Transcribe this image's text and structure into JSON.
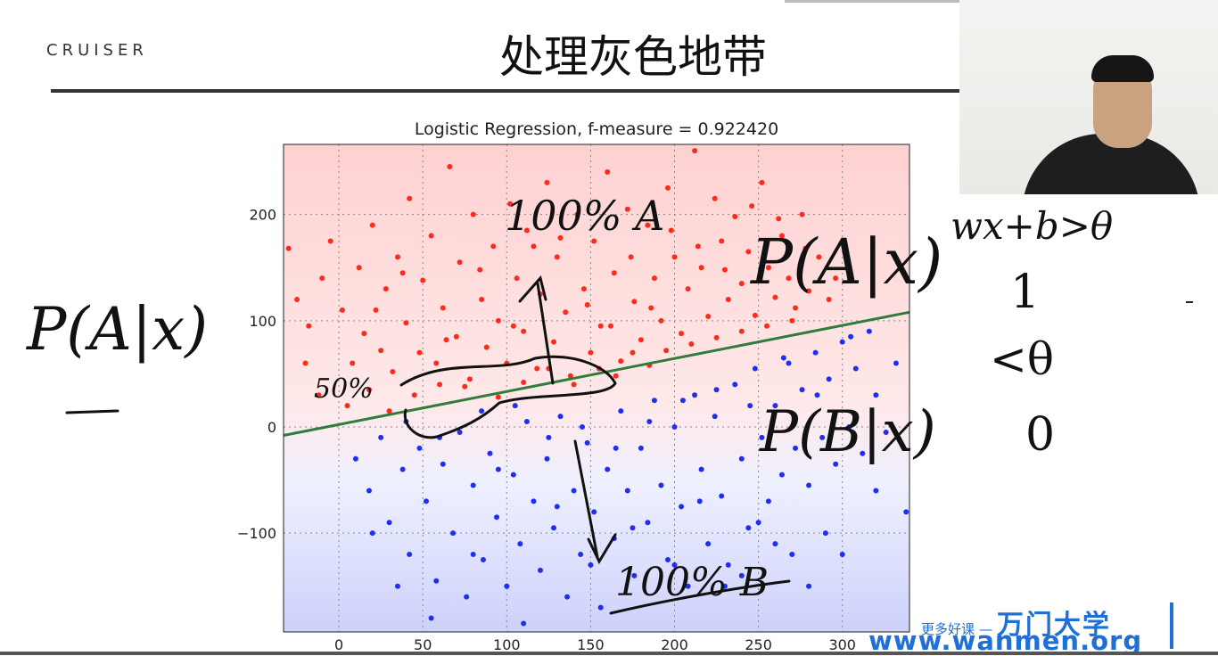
{
  "slide": {
    "logo": "CRUISER",
    "title": "处理灰色地带"
  },
  "colors": {
    "class_a": "#ff2a1a",
    "class_b": "#1f2ef0",
    "region_a": "#ffd2d2",
    "region_b": "#cfd2fb",
    "boundary": "#2f7d3a",
    "ink": "#111111",
    "brand": "#1e6fd6"
  },
  "chart_data": {
    "type": "scatter",
    "title": "Logistic Regression, f-measure = 0.922420",
    "xlim": [
      -33,
      340
    ],
    "ylim": [
      -193,
      266
    ],
    "xticks": [
      0,
      50,
      100,
      150,
      200,
      250,
      300
    ],
    "yticks": [
      -100,
      0,
      100,
      200
    ],
    "grid": true,
    "decision_boundary": {
      "x": [
        -33,
        340
      ],
      "y": [
        -8,
        108
      ]
    },
    "series": [
      {
        "points": [
          [
            -30,
            168
          ],
          [
            -25,
            120
          ],
          [
            -18,
            95
          ],
          [
            -10,
            140
          ],
          [
            -5,
            175
          ],
          [
            2,
            110
          ],
          [
            8,
            60
          ],
          [
            12,
            150
          ],
          [
            15,
            88
          ],
          [
            20,
            190
          ],
          [
            25,
            72
          ],
          [
            28,
            130
          ],
          [
            32,
            52
          ],
          [
            35,
            160
          ],
          [
            40,
            98
          ],
          [
            42,
            215
          ],
          [
            48,
            70
          ],
          [
            50,
            138
          ],
          [
            55,
            180
          ],
          [
            58,
            60
          ],
          [
            62,
            112
          ],
          [
            66,
            245
          ],
          [
            70,
            85
          ],
          [
            72,
            155
          ],
          [
            78,
            45
          ],
          [
            80,
            200
          ],
          [
            85,
            120
          ],
          [
            88,
            75
          ],
          [
            92,
            170
          ],
          [
            95,
            100
          ],
          [
            100,
            60
          ],
          [
            102,
            210
          ],
          [
            106,
            140
          ],
          [
            110,
            90
          ],
          [
            112,
            185
          ],
          [
            118,
            55
          ],
          [
            120,
            125
          ],
          [
            124,
            230
          ],
          [
            128,
            80
          ],
          [
            130,
            160
          ],
          [
            135,
            108
          ],
          [
            138,
            48
          ],
          [
            142,
            200
          ],
          [
            146,
            130
          ],
          [
            150,
            70
          ],
          [
            152,
            175
          ],
          [
            156,
            95
          ],
          [
            160,
            240
          ],
          [
            164,
            145
          ],
          [
            168,
            62
          ],
          [
            172,
            205
          ],
          [
            176,
            118
          ],
          [
            180,
            82
          ],
          [
            184,
            190
          ],
          [
            188,
            140
          ],
          [
            192,
            100
          ],
          [
            196,
            225
          ],
          [
            200,
            160
          ],
          [
            204,
            88
          ],
          [
            208,
            130
          ],
          [
            212,
            260
          ],
          [
            216,
            150
          ],
          [
            220,
            104
          ],
          [
            224,
            215
          ],
          [
            228,
            175
          ],
          [
            232,
            120
          ],
          [
            236,
            198
          ],
          [
            240,
            135
          ],
          [
            244,
            165
          ],
          [
            248,
            105
          ],
          [
            252,
            230
          ],
          [
            256,
            150
          ],
          [
            260,
            122
          ],
          [
            264,
            180
          ],
          [
            268,
            140
          ],
          [
            272,
            112
          ],
          [
            276,
            200
          ],
          [
            280,
            128
          ],
          [
            286,
            160
          ],
          [
            292,
            120
          ],
          [
            5,
            20
          ],
          [
            18,
            35
          ],
          [
            30,
            15
          ],
          [
            45,
            30
          ],
          [
            60,
            40
          ],
          [
            75,
            38
          ],
          [
            95,
            28
          ],
          [
            110,
            42
          ],
          [
            125,
            55
          ],
          [
            140,
            40
          ],
          [
            155,
            55
          ],
          [
            165,
            48
          ],
          [
            175,
            70
          ],
          [
            185,
            58
          ],
          [
            195,
            72
          ],
          [
            210,
            78
          ],
          [
            225,
            84
          ],
          [
            240,
            90
          ],
          [
            255,
            95
          ],
          [
            270,
            100
          ],
          [
            -20,
            60
          ],
          [
            -12,
            30
          ],
          [
            22,
            110
          ],
          [
            38,
            145
          ],
          [
            64,
            82
          ],
          [
            84,
            148
          ],
          [
            104,
            95
          ],
          [
            116,
            170
          ],
          [
            132,
            178
          ],
          [
            148,
            115
          ],
          [
            162,
            95
          ],
          [
            174,
            160
          ],
          [
            186,
            112
          ],
          [
            198,
            185
          ],
          [
            214,
            170
          ],
          [
            230,
            148
          ],
          [
            246,
            208
          ],
          [
            262,
            196
          ],
          [
            278,
            168
          ],
          [
            296,
            140
          ]
        ]
      },
      {
        "points": [
          [
            10,
            -30
          ],
          [
            18,
            -60
          ],
          [
            25,
            -10
          ],
          [
            30,
            -90
          ],
          [
            38,
            -40
          ],
          [
            42,
            -120
          ],
          [
            48,
            -20
          ],
          [
            52,
            -70
          ],
          [
            58,
            -145
          ],
          [
            62,
            -35
          ],
          [
            68,
            -100
          ],
          [
            72,
            -5
          ],
          [
            76,
            -160
          ],
          [
            80,
            -55
          ],
          [
            86,
            -125
          ],
          [
            90,
            -25
          ],
          [
            94,
            -85
          ],
          [
            100,
            -150
          ],
          [
            104,
            -45
          ],
          [
            108,
            -110
          ],
          [
            112,
            5
          ],
          [
            116,
            -70
          ],
          [
            120,
            -135
          ],
          [
            124,
            -30
          ],
          [
            128,
            -95
          ],
          [
            132,
            10
          ],
          [
            136,
            -160
          ],
          [
            140,
            -60
          ],
          [
            144,
            -120
          ],
          [
            148,
            -15
          ],
          [
            152,
            -80
          ],
          [
            156,
            -170
          ],
          [
            160,
            -40
          ],
          [
            164,
            -105
          ],
          [
            168,
            15
          ],
          [
            172,
            -60
          ],
          [
            176,
            -140
          ],
          [
            180,
            -20
          ],
          [
            184,
            -90
          ],
          [
            188,
            25
          ],
          [
            192,
            -55
          ],
          [
            196,
            -125
          ],
          [
            200,
            0
          ],
          [
            204,
            -75
          ],
          [
            208,
            -150
          ],
          [
            212,
            30
          ],
          [
            216,
            -40
          ],
          [
            220,
            -110
          ],
          [
            224,
            10
          ],
          [
            228,
            -65
          ],
          [
            232,
            -130
          ],
          [
            236,
            40
          ],
          [
            240,
            -30
          ],
          [
            244,
            -95
          ],
          [
            248,
            55
          ],
          [
            252,
            -10
          ],
          [
            256,
            -70
          ],
          [
            260,
            20
          ],
          [
            264,
            -45
          ],
          [
            268,
            60
          ],
          [
            272,
            -20
          ],
          [
            276,
            35
          ],
          [
            280,
            -55
          ],
          [
            284,
            70
          ],
          [
            288,
            -10
          ],
          [
            292,
            45
          ],
          [
            296,
            -35
          ],
          [
            300,
            80
          ],
          [
            304,
            0
          ],
          [
            308,
            55
          ],
          [
            312,
            -25
          ],
          [
            316,
            90
          ],
          [
            320,
            30
          ],
          [
            326,
            -5
          ],
          [
            332,
            60
          ],
          [
            338,
            -80
          ],
          [
            290,
            -100
          ],
          [
            270,
            -120
          ],
          [
            250,
            -90
          ],
          [
            230,
            -150
          ],
          [
            20,
            -100
          ],
          [
            35,
            -150
          ],
          [
            55,
            -180
          ],
          [
            80,
            -120
          ],
          [
            110,
            -185
          ],
          [
            130,
            -75
          ],
          [
            150,
            -130
          ],
          [
            175,
            -95
          ],
          [
            200,
            -130
          ],
          [
            215,
            -70
          ],
          [
            240,
            -140
          ],
          [
            260,
            -110
          ],
          [
            280,
            -150
          ],
          [
            300,
            -120
          ],
          [
            320,
            -60
          ],
          [
            95,
            -40
          ],
          [
            125,
            -10
          ],
          [
            145,
            0
          ],
          [
            165,
            -20
          ],
          [
            185,
            5
          ],
          [
            205,
            25
          ],
          [
            225,
            35
          ],
          [
            245,
            20
          ],
          [
            265,
            65
          ],
          [
            285,
            30
          ],
          [
            305,
            85
          ],
          [
            60,
            -10
          ],
          [
            40,
            5
          ],
          [
            85,
            15
          ],
          [
            105,
            20
          ]
        ]
      }
    ]
  },
  "annotations": {
    "a_top": "100% A",
    "b_bottom": "100% B",
    "pa_x": "P(A|x)",
    "pb_x": "P(B|x)",
    "half": "50%",
    "left_pa_x": "P(A|x)",
    "rule": "wx+b>θ",
    "one": "1",
    "less_theta": "<θ",
    "zero": "0"
  },
  "watermark": {
    "tag": "更多好课",
    "brand": "万门大学",
    "url": "www.wanmen.org"
  }
}
